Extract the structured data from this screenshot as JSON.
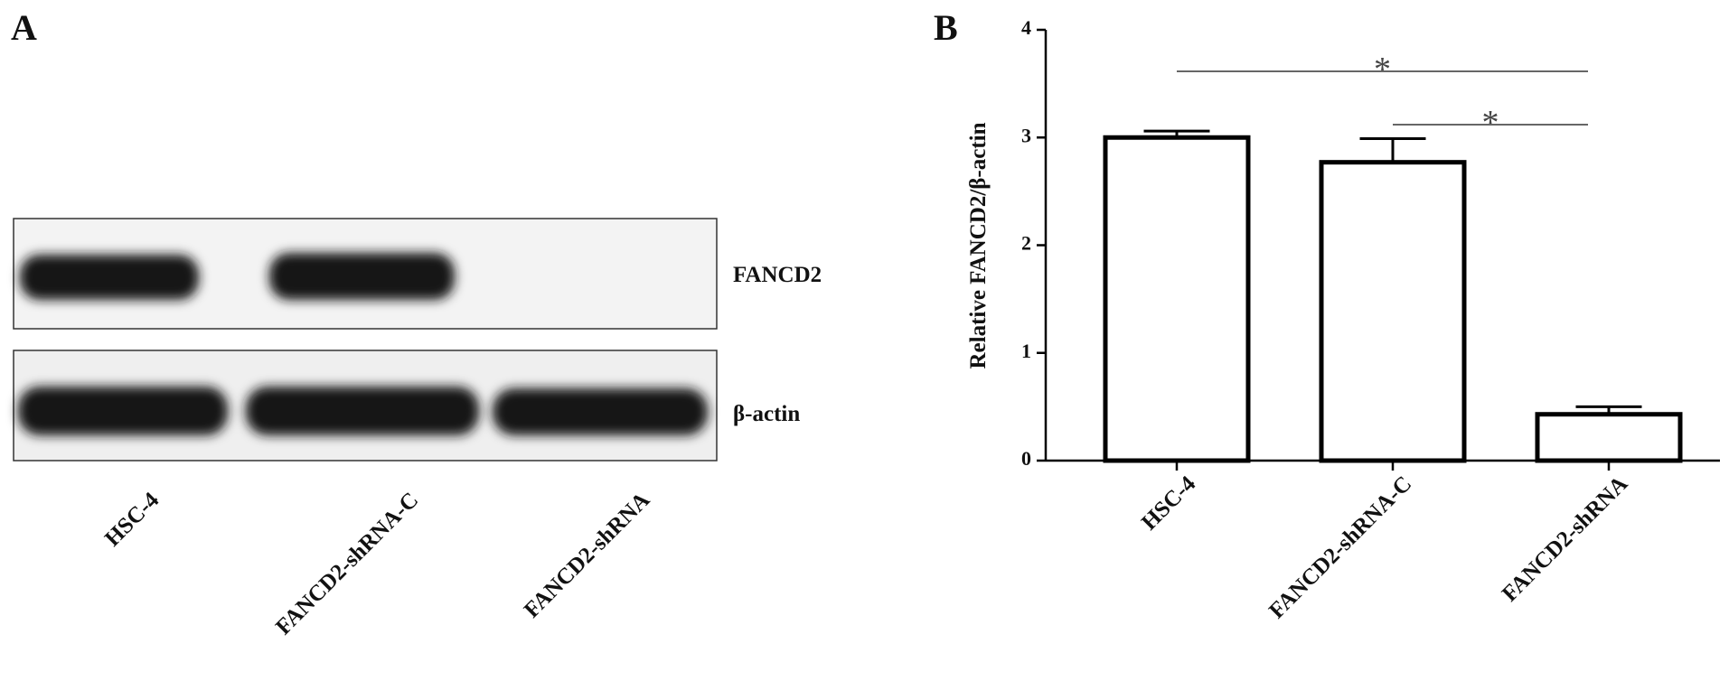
{
  "panel_labels": [
    "A",
    "B"
  ],
  "blot": {
    "bands": [
      "FANCD2",
      "β-actin"
    ],
    "lanes": [
      "HSC-4",
      "FANCD2-shRNA-C",
      "FANCD2-shRNA"
    ]
  },
  "chart_data": {
    "type": "bar",
    "ylabel": "Relative FANCD2/β-actin",
    "categories": [
      "HSC-4",
      "FANCD2-shRNA-C",
      "FANCD2-shRNA"
    ],
    "values": [
      3.0,
      2.77,
      0.43
    ],
    "errors": [
      0.06,
      0.22,
      0.07
    ],
    "color": "#ffffff",
    "edgecolor": "#000000",
    "ylim": [
      0,
      4
    ],
    "yticks": [
      0,
      1,
      2,
      3,
      4
    ],
    "annotations": [
      {
        "text": "*",
        "from": 0,
        "to": 2
      },
      {
        "text": "*",
        "from": 1,
        "to": 2
      }
    ]
  }
}
